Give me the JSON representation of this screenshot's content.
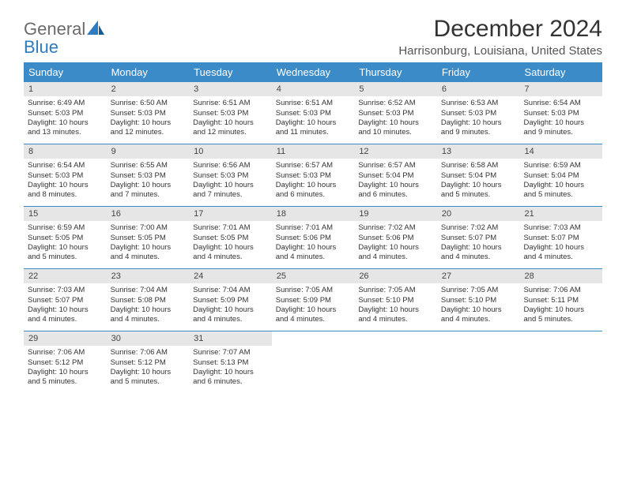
{
  "logo": {
    "text1": "General",
    "text2": "Blue"
  },
  "title": "December 2024",
  "location": "Harrisonburg, Louisiana, United States",
  "colors": {
    "header_bg": "#3b8bc9",
    "header_text": "#ffffff",
    "daynum_bg": "#e6e6e6",
    "week_border": "#3b8bc9",
    "logo_gray": "#6b6b6b",
    "logo_blue": "#2d7cc0"
  },
  "dayNames": [
    "Sunday",
    "Monday",
    "Tuesday",
    "Wednesday",
    "Thursday",
    "Friday",
    "Saturday"
  ],
  "days": [
    {
      "n": "1",
      "sunrise": "Sunrise: 6:49 AM",
      "sunset": "Sunset: 5:03 PM",
      "daylight1": "Daylight: 10 hours",
      "daylight2": "and 13 minutes."
    },
    {
      "n": "2",
      "sunrise": "Sunrise: 6:50 AM",
      "sunset": "Sunset: 5:03 PM",
      "daylight1": "Daylight: 10 hours",
      "daylight2": "and 12 minutes."
    },
    {
      "n": "3",
      "sunrise": "Sunrise: 6:51 AM",
      "sunset": "Sunset: 5:03 PM",
      "daylight1": "Daylight: 10 hours",
      "daylight2": "and 12 minutes."
    },
    {
      "n": "4",
      "sunrise": "Sunrise: 6:51 AM",
      "sunset": "Sunset: 5:03 PM",
      "daylight1": "Daylight: 10 hours",
      "daylight2": "and 11 minutes."
    },
    {
      "n": "5",
      "sunrise": "Sunrise: 6:52 AM",
      "sunset": "Sunset: 5:03 PM",
      "daylight1": "Daylight: 10 hours",
      "daylight2": "and 10 minutes."
    },
    {
      "n": "6",
      "sunrise": "Sunrise: 6:53 AM",
      "sunset": "Sunset: 5:03 PM",
      "daylight1": "Daylight: 10 hours",
      "daylight2": "and 9 minutes."
    },
    {
      "n": "7",
      "sunrise": "Sunrise: 6:54 AM",
      "sunset": "Sunset: 5:03 PM",
      "daylight1": "Daylight: 10 hours",
      "daylight2": "and 9 minutes."
    },
    {
      "n": "8",
      "sunrise": "Sunrise: 6:54 AM",
      "sunset": "Sunset: 5:03 PM",
      "daylight1": "Daylight: 10 hours",
      "daylight2": "and 8 minutes."
    },
    {
      "n": "9",
      "sunrise": "Sunrise: 6:55 AM",
      "sunset": "Sunset: 5:03 PM",
      "daylight1": "Daylight: 10 hours",
      "daylight2": "and 7 minutes."
    },
    {
      "n": "10",
      "sunrise": "Sunrise: 6:56 AM",
      "sunset": "Sunset: 5:03 PM",
      "daylight1": "Daylight: 10 hours",
      "daylight2": "and 7 minutes."
    },
    {
      "n": "11",
      "sunrise": "Sunrise: 6:57 AM",
      "sunset": "Sunset: 5:03 PM",
      "daylight1": "Daylight: 10 hours",
      "daylight2": "and 6 minutes."
    },
    {
      "n": "12",
      "sunrise": "Sunrise: 6:57 AM",
      "sunset": "Sunset: 5:04 PM",
      "daylight1": "Daylight: 10 hours",
      "daylight2": "and 6 minutes."
    },
    {
      "n": "13",
      "sunrise": "Sunrise: 6:58 AM",
      "sunset": "Sunset: 5:04 PM",
      "daylight1": "Daylight: 10 hours",
      "daylight2": "and 5 minutes."
    },
    {
      "n": "14",
      "sunrise": "Sunrise: 6:59 AM",
      "sunset": "Sunset: 5:04 PM",
      "daylight1": "Daylight: 10 hours",
      "daylight2": "and 5 minutes."
    },
    {
      "n": "15",
      "sunrise": "Sunrise: 6:59 AM",
      "sunset": "Sunset: 5:05 PM",
      "daylight1": "Daylight: 10 hours",
      "daylight2": "and 5 minutes."
    },
    {
      "n": "16",
      "sunrise": "Sunrise: 7:00 AM",
      "sunset": "Sunset: 5:05 PM",
      "daylight1": "Daylight: 10 hours",
      "daylight2": "and 4 minutes."
    },
    {
      "n": "17",
      "sunrise": "Sunrise: 7:01 AM",
      "sunset": "Sunset: 5:05 PM",
      "daylight1": "Daylight: 10 hours",
      "daylight2": "and 4 minutes."
    },
    {
      "n": "18",
      "sunrise": "Sunrise: 7:01 AM",
      "sunset": "Sunset: 5:06 PM",
      "daylight1": "Daylight: 10 hours",
      "daylight2": "and 4 minutes."
    },
    {
      "n": "19",
      "sunrise": "Sunrise: 7:02 AM",
      "sunset": "Sunset: 5:06 PM",
      "daylight1": "Daylight: 10 hours",
      "daylight2": "and 4 minutes."
    },
    {
      "n": "20",
      "sunrise": "Sunrise: 7:02 AM",
      "sunset": "Sunset: 5:07 PM",
      "daylight1": "Daylight: 10 hours",
      "daylight2": "and 4 minutes."
    },
    {
      "n": "21",
      "sunrise": "Sunrise: 7:03 AM",
      "sunset": "Sunset: 5:07 PM",
      "daylight1": "Daylight: 10 hours",
      "daylight2": "and 4 minutes."
    },
    {
      "n": "22",
      "sunrise": "Sunrise: 7:03 AM",
      "sunset": "Sunset: 5:07 PM",
      "daylight1": "Daylight: 10 hours",
      "daylight2": "and 4 minutes."
    },
    {
      "n": "23",
      "sunrise": "Sunrise: 7:04 AM",
      "sunset": "Sunset: 5:08 PM",
      "daylight1": "Daylight: 10 hours",
      "daylight2": "and 4 minutes."
    },
    {
      "n": "24",
      "sunrise": "Sunrise: 7:04 AM",
      "sunset": "Sunset: 5:09 PM",
      "daylight1": "Daylight: 10 hours",
      "daylight2": "and 4 minutes."
    },
    {
      "n": "25",
      "sunrise": "Sunrise: 7:05 AM",
      "sunset": "Sunset: 5:09 PM",
      "daylight1": "Daylight: 10 hours",
      "daylight2": "and 4 minutes."
    },
    {
      "n": "26",
      "sunrise": "Sunrise: 7:05 AM",
      "sunset": "Sunset: 5:10 PM",
      "daylight1": "Daylight: 10 hours",
      "daylight2": "and 4 minutes."
    },
    {
      "n": "27",
      "sunrise": "Sunrise: 7:05 AM",
      "sunset": "Sunset: 5:10 PM",
      "daylight1": "Daylight: 10 hours",
      "daylight2": "and 4 minutes."
    },
    {
      "n": "28",
      "sunrise": "Sunrise: 7:06 AM",
      "sunset": "Sunset: 5:11 PM",
      "daylight1": "Daylight: 10 hours",
      "daylight2": "and 5 minutes."
    },
    {
      "n": "29",
      "sunrise": "Sunrise: 7:06 AM",
      "sunset": "Sunset: 5:12 PM",
      "daylight1": "Daylight: 10 hours",
      "daylight2": "and 5 minutes."
    },
    {
      "n": "30",
      "sunrise": "Sunrise: 7:06 AM",
      "sunset": "Sunset: 5:12 PM",
      "daylight1": "Daylight: 10 hours",
      "daylight2": "and 5 minutes."
    },
    {
      "n": "31",
      "sunrise": "Sunrise: 7:07 AM",
      "sunset": "Sunset: 5:13 PM",
      "daylight1": "Daylight: 10 hours",
      "daylight2": "and 6 minutes."
    }
  ]
}
